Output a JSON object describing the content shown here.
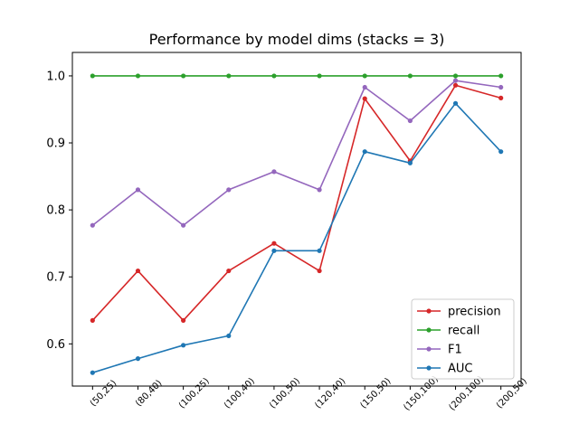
{
  "chart_data": {
    "type": "line",
    "title": "Performance by model dims (stacks = 3)",
    "xlabel": "",
    "ylabel": "",
    "categories": [
      "(50,25)",
      "(80,40)",
      "(100,25)",
      "(100,40)",
      "(100,50)",
      "(120,40)",
      "(150,50)",
      "(150,100)",
      "(200,100)",
      "(200,50)"
    ],
    "ylim": [
      0.537,
      1.035
    ],
    "yticks": [
      0.6,
      0.7,
      0.8,
      0.9,
      1.0
    ],
    "ytick_labels": [
      "0.6",
      "0.7",
      "0.8",
      "0.9",
      "1.0"
    ],
    "grid": false,
    "legend_position": "lower-right",
    "series": [
      {
        "name": "precision",
        "color": "#d62728",
        "values": [
          0.635,
          0.709,
          0.635,
          0.709,
          0.75,
          0.709,
          0.966,
          0.873,
          0.986,
          0.967
        ]
      },
      {
        "name": "recall",
        "color": "#2ca02c",
        "values": [
          1.0,
          1.0,
          1.0,
          1.0,
          1.0,
          1.0,
          1.0,
          1.0,
          1.0,
          1.0
        ]
      },
      {
        "name": "F1",
        "color": "#9467bd",
        "values": [
          0.777,
          0.83,
          0.777,
          0.83,
          0.857,
          0.83,
          0.983,
          0.933,
          0.993,
          0.983
        ]
      },
      {
        "name": "AUC",
        "color": "#1f77b4",
        "values": [
          0.557,
          0.578,
          0.598,
          0.612,
          0.739,
          0.739,
          0.887,
          0.87,
          0.959,
          0.887
        ]
      }
    ]
  }
}
